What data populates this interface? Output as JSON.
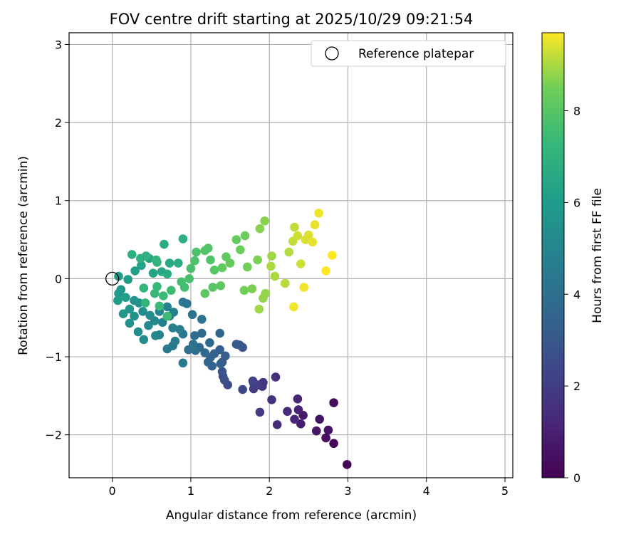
{
  "chart_data": {
    "type": "scatter",
    "title": "FOV centre drift starting at 2025/10/29 09:21:54",
    "xlabel": "Angular distance from reference (arcmin)",
    "ylabel": "Rotation from reference (arcmin)",
    "xlim": [
      -0.55,
      5.1
    ],
    "ylim": [
      -2.55,
      3.15
    ],
    "xticks": [
      "0",
      "1",
      "2",
      "3",
      "4",
      "5"
    ],
    "yticks": [
      "−2",
      "−1",
      "0",
      "1",
      "2",
      "3"
    ],
    "grid": true,
    "legend": {
      "position": "top-right",
      "entries": [
        "Reference platepar"
      ]
    },
    "reference_point": {
      "x": 0,
      "y": 0,
      "label": "Reference platepar"
    },
    "colorbar": {
      "label": "Hours from first FF file",
      "range": [
        0,
        9.7
      ],
      "ticks": [
        "0",
        "2",
        "4",
        "6",
        "8"
      ],
      "colormap": "viridis"
    },
    "series": [
      {
        "points": [
          [
            2.99,
            -2.38,
            0.1
          ],
          [
            2.82,
            -2.11,
            0.2
          ],
          [
            2.82,
            -1.59,
            0.3
          ],
          [
            2.72,
            -2.04,
            0.4
          ],
          [
            2.75,
            -1.94,
            0.5
          ],
          [
            2.64,
            -1.8,
            0.6
          ],
          [
            2.6,
            -1.95,
            0.7
          ],
          [
            2.43,
            -1.75,
            0.8
          ],
          [
            2.4,
            -1.86,
            0.9
          ],
          [
            2.37,
            -1.68,
            1.0
          ],
          [
            2.36,
            -1.54,
            1.1
          ],
          [
            2.32,
            -1.8,
            1.2
          ],
          [
            2.23,
            -1.7,
            1.3
          ],
          [
            2.1,
            -1.87,
            1.4
          ],
          [
            2.08,
            -1.26,
            1.5
          ],
          [
            2.03,
            -1.55,
            1.6
          ],
          [
            1.92,
            -1.33,
            1.7
          ],
          [
            1.91,
            -1.38,
            1.8
          ],
          [
            1.88,
            -1.71,
            1.9
          ],
          [
            1.85,
            -1.36,
            2.0
          ],
          [
            1.8,
            -1.41,
            2.0
          ],
          [
            1.8,
            -1.34,
            2.1
          ],
          [
            1.79,
            -1.31,
            2.2
          ],
          [
            1.66,
            -1.42,
            2.4
          ],
          [
            1.47,
            -1.36,
            2.5
          ],
          [
            1.43,
            -1.3,
            2.6
          ],
          [
            1.41,
            -1.25,
            2.7
          ],
          [
            1.4,
            -1.19,
            2.8
          ],
          [
            1.4,
            -1.07,
            2.9
          ],
          [
            1.66,
            -0.88,
            2.9
          ],
          [
            1.62,
            -0.85,
            3.0
          ],
          [
            1.58,
            -0.84,
            3.1
          ],
          [
            1.44,
            -0.99,
            3.2
          ],
          [
            1.38,
            -1.09,
            3.3
          ],
          [
            1.37,
            -0.91,
            3.3
          ],
          [
            1.3,
            -0.96,
            3.4
          ],
          [
            1.27,
            -1.12,
            3.4
          ],
          [
            1.25,
            -1.01,
            3.5
          ],
          [
            1.22,
            -1.07,
            3.5
          ],
          [
            1.37,
            -0.7,
            3.6
          ],
          [
            1.24,
            -0.82,
            3.7
          ],
          [
            1.18,
            -0.95,
            3.7
          ],
          [
            1.14,
            -0.7,
            3.8
          ],
          [
            1.11,
            -0.88,
            3.8
          ],
          [
            1.06,
            -0.92,
            3.9
          ],
          [
            1.05,
            -0.73,
            3.9
          ],
          [
            0.97,
            -0.91,
            4.0
          ],
          [
            1.03,
            -0.84,
            4.1
          ],
          [
            1.14,
            -0.52,
            4.1
          ],
          [
            1.02,
            -0.46,
            4.2
          ],
          [
            0.95,
            -0.32,
            4.2
          ],
          [
            0.9,
            -0.3,
            4.3
          ],
          [
            0.9,
            -0.71,
            4.3
          ],
          [
            0.77,
            -0.86,
            4.4
          ],
          [
            0.7,
            -0.9,
            4.5
          ],
          [
            0.9,
            -1.08,
            4.5
          ],
          [
            0.86,
            -0.65,
            4.6
          ],
          [
            0.8,
            -0.8,
            4.6
          ],
          [
            0.77,
            -0.63,
            4.7
          ],
          [
            0.73,
            -0.48,
            4.7
          ],
          [
            0.78,
            -0.43,
            4.8
          ],
          [
            0.7,
            -0.36,
            4.9
          ],
          [
            0.64,
            -0.56,
            4.9
          ],
          [
            0.6,
            -0.42,
            5.0
          ],
          [
            0.6,
            -0.72,
            5.0
          ],
          [
            0.55,
            -0.73,
            5.1
          ],
          [
            0.54,
            -0.54,
            5.1
          ],
          [
            0.48,
            -0.47,
            5.2
          ],
          [
            0.46,
            -0.6,
            5.2
          ],
          [
            0.4,
            -0.78,
            5.3
          ],
          [
            0.39,
            -0.42,
            5.4
          ],
          [
            0.33,
            -0.68,
            5.4
          ],
          [
            0.22,
            -0.57,
            5.5
          ],
          [
            0.34,
            -0.31,
            5.5
          ],
          [
            0.28,
            -0.28,
            5.6
          ],
          [
            0.28,
            -0.48,
            5.6
          ],
          [
            0.22,
            -0.39,
            5.7
          ],
          [
            0.14,
            -0.45,
            5.8
          ],
          [
            0.11,
            -0.14,
            5.8
          ],
          [
            0.08,
            -0.19,
            5.9
          ],
          [
            0.07,
            -0.28,
            6.0
          ],
          [
            0.08,
            0.03,
            5.9
          ],
          [
            0.2,
            -0.01,
            6.0
          ],
          [
            0.17,
            -0.24,
            6.1
          ],
          [
            0.29,
            0.1,
            6.1
          ],
          [
            0.37,
            0.17,
            6.2
          ],
          [
            0.47,
            0.26,
            6.3
          ],
          [
            0.52,
            0.07,
            6.4
          ],
          [
            0.63,
            0.09,
            6.5
          ],
          [
            0.73,
            0.2,
            6.6
          ],
          [
            0.7,
            0.06,
            6.7
          ],
          [
            0.66,
            0.44,
            6.7
          ],
          [
            0.84,
            0.2,
            6.8
          ],
          [
            0.9,
            0.51,
            6.9
          ],
          [
            0.25,
            0.31,
            6.9
          ],
          [
            0.36,
            0.26,
            7.0
          ],
          [
            0.43,
            0.29,
            7.0
          ],
          [
            0.56,
            0.24,
            7.1
          ],
          [
            0.57,
            0.21,
            7.1
          ],
          [
            0.4,
            -0.12,
            7.2
          ],
          [
            0.42,
            -0.31,
            7.2
          ],
          [
            0.54,
            -0.19,
            7.3
          ],
          [
            0.57,
            -0.1,
            7.3
          ],
          [
            0.65,
            -0.22,
            7.4
          ],
          [
            0.6,
            -0.35,
            7.4
          ],
          [
            0.7,
            -0.48,
            7.5
          ],
          [
            0.75,
            -0.15,
            7.5
          ],
          [
            0.88,
            -0.04,
            7.6
          ],
          [
            0.92,
            -0.11,
            7.6
          ],
          [
            0.98,
            0.0,
            7.7
          ],
          [
            1.0,
            0.13,
            7.7
          ],
          [
            1.05,
            0.23,
            7.8
          ],
          [
            1.07,
            0.34,
            7.8
          ],
          [
            1.18,
            0.36,
            7.9
          ],
          [
            1.22,
            0.39,
            7.9
          ],
          [
            1.25,
            0.24,
            7.9
          ],
          [
            1.3,
            0.11,
            8.0
          ],
          [
            1.28,
            -0.11,
            8.0
          ],
          [
            1.18,
            -0.19,
            8.1
          ],
          [
            1.38,
            -0.09,
            8.1
          ],
          [
            1.4,
            0.14,
            8.2
          ],
          [
            1.45,
            0.28,
            8.2
          ],
          [
            1.5,
            0.2,
            8.3
          ],
          [
            1.58,
            0.5,
            8.3
          ],
          [
            1.63,
            0.37,
            8.4
          ],
          [
            1.69,
            0.55,
            8.4
          ],
          [
            1.72,
            0.15,
            8.5
          ],
          [
            1.68,
            -0.15,
            8.5
          ],
          [
            1.78,
            -0.13,
            8.6
          ],
          [
            1.85,
            0.24,
            8.6
          ],
          [
            1.88,
            0.64,
            8.7
          ],
          [
            1.94,
            0.74,
            8.7
          ],
          [
            1.95,
            -0.19,
            8.8
          ],
          [
            1.92,
            -0.25,
            8.8
          ],
          [
            1.87,
            -0.39,
            8.9
          ],
          [
            2.03,
            0.29,
            8.9
          ],
          [
            2.02,
            0.16,
            9.0
          ],
          [
            2.07,
            0.03,
            9.0
          ],
          [
            2.2,
            -0.06,
            9.1
          ],
          [
            2.25,
            0.34,
            9.1
          ],
          [
            2.3,
            0.48,
            9.2
          ],
          [
            2.32,
            0.66,
            9.2
          ],
          [
            2.36,
            0.55,
            9.3
          ],
          [
            2.4,
            0.19,
            9.3
          ],
          [
            2.46,
            0.5,
            9.4
          ],
          [
            2.5,
            0.56,
            9.4
          ],
          [
            2.55,
            0.47,
            9.5
          ],
          [
            2.58,
            0.69,
            9.5
          ],
          [
            2.63,
            0.84,
            9.6
          ],
          [
            2.44,
            -0.11,
            9.6
          ],
          [
            2.31,
            -0.36,
            9.6
          ],
          [
            2.72,
            0.1,
            9.7
          ],
          [
            2.8,
            0.3,
            9.7
          ]
        ]
      }
    ]
  }
}
